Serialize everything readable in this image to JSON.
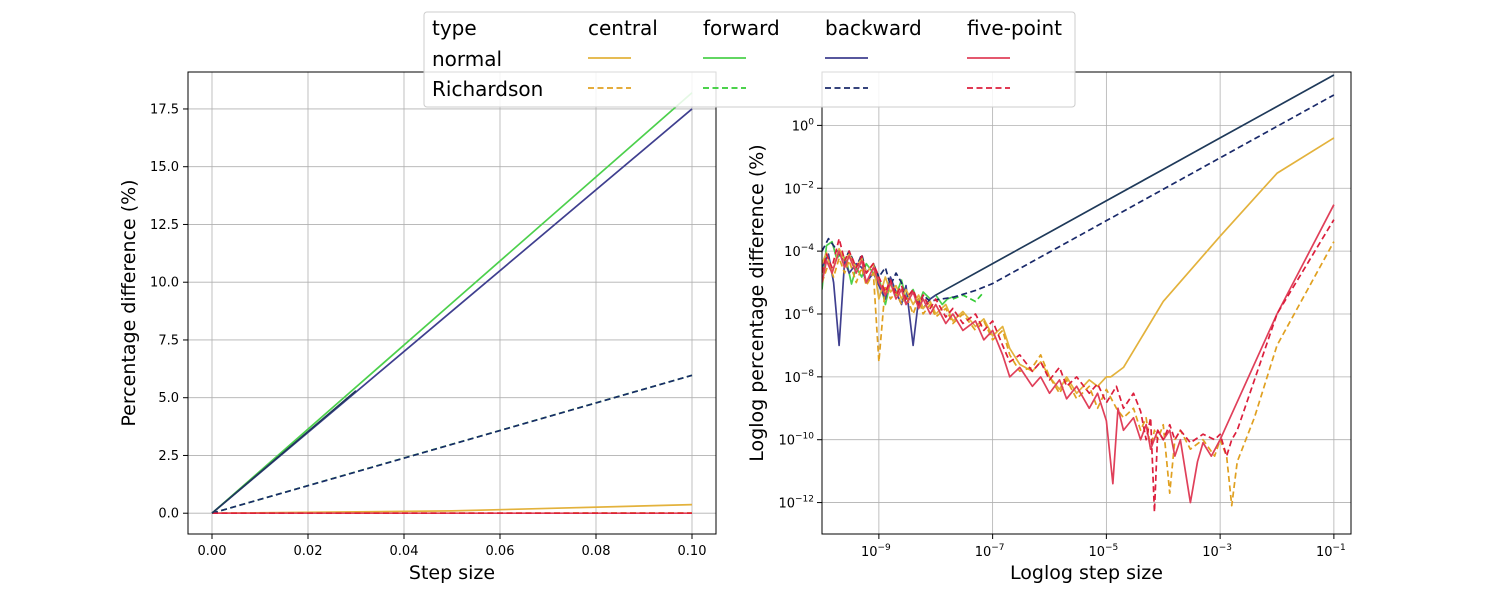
{
  "chart_data": [
    {
      "type": "line",
      "xlabel": "Step size",
      "ylabel": "Percentage difference (%)",
      "xlim": [
        -0.005,
        0.105
      ],
      "ylim": [
        -0.9,
        19.1
      ],
      "xticks": [
        0.0,
        0.02,
        0.04,
        0.06,
        0.08,
        0.1
      ],
      "xtick_labels": [
        "0.00",
        "0.02",
        "0.04",
        "0.06",
        "0.08",
        "0.10"
      ],
      "yticks": [
        0.0,
        2.5,
        5.0,
        7.5,
        10.0,
        12.5,
        15.0,
        17.5
      ],
      "ytick_labels": [
        "0.0",
        "2.5",
        "5.0",
        "7.5",
        "10.0",
        "12.5",
        "15.0",
        "17.5"
      ],
      "grid": true,
      "series": [
        {
          "name": "central normal",
          "style": "solid",
          "color": "#E3B23C",
          "x": [
            0.0,
            0.05,
            0.1
          ],
          "y": [
            0.0,
            0.1,
            0.37
          ]
        },
        {
          "name": "forward normal",
          "style": "solid",
          "color": "#4CD04C",
          "x": [
            0.0,
            0.05,
            0.1
          ],
          "y": [
            0.0,
            9.1,
            18.2
          ]
        },
        {
          "name": "backward normal",
          "style": "solid",
          "color": "#3F3F8F",
          "x": [
            0.0,
            0.05,
            0.1
          ],
          "y": [
            0.0,
            8.75,
            17.5
          ]
        },
        {
          "name": "five-point normal",
          "style": "solid",
          "color": "#E0405A",
          "x": [
            0.0,
            0.1
          ],
          "y": [
            0.0,
            0.0
          ]
        },
        {
          "name": "central Richardson",
          "style": "dashed",
          "color": "#E0A020",
          "x": [
            0.0,
            0.1
          ],
          "y": [
            0.0,
            0.01
          ]
        },
        {
          "name": "forward Richardson",
          "style": "dashed",
          "color": "#33CC33",
          "x": [
            0.0,
            0.1
          ],
          "y": [
            0.0,
            5.97
          ]
        },
        {
          "name": "backward Richardson",
          "style": "dashed",
          "color": "#1A2A6A",
          "x": [
            0.0,
            0.05,
            0.1
          ],
          "y": [
            0.0,
            2.98,
            5.97
          ]
        },
        {
          "name": "five-point Richardson",
          "style": "dashed",
          "color": "#DC1E3C",
          "x": [
            0.0,
            0.1
          ],
          "y": [
            0.0,
            0.0
          ]
        },
        {
          "name": "overlap",
          "style": "solid",
          "color": "#1F3A5A",
          "x": [
            0.0,
            0.03
          ],
          "y": [
            0.0,
            5.3
          ]
        }
      ]
    },
    {
      "type": "line",
      "xscale": "log",
      "yscale": "log",
      "xlabel": "Loglog step size",
      "ylabel": "Loglog percentage difference (%)",
      "xlim": [
        1e-10,
        0.2
      ],
      "ylim": [
        1e-13,
        50
      ],
      "xticks": [
        1e-09,
        1e-07,
        1e-05,
        0.001,
        0.1
      ],
      "xtick_exponents": [
        "−9",
        "−7",
        "−5",
        "−3",
        "−1"
      ],
      "yticks": [
        1e-12,
        1e-10,
        1e-08,
        1e-06,
        0.0001,
        0.01,
        1
      ],
      "ytick_exponents": [
        "−12",
        "−10",
        "−8",
        "−6",
        "−4",
        "−2",
        "0"
      ],
      "tick_base": "10",
      "grid": true,
      "series": [
        {
          "name": "forward normal",
          "style": "solid",
          "color": "#4CD04C",
          "x": [
            1e-10,
            1.2e-10,
            1.5e-10,
            1.8e-10,
            2.2e-10,
            2.7e-10,
            3.3e-10,
            4e-10,
            5e-10,
            6e-10,
            8e-10,
            1e-09,
            1.3e-09,
            1.6e-09,
            2e-09,
            2.5e-09,
            3e-09,
            4e-09,
            5e-09,
            6e-09,
            8e-09,
            1e-08,
            1.3e-08,
            1.6e-08,
            2e-08
          ],
          "y": [
            6e-06,
            0.00015,
            0.0002,
            6e-05,
            8e-05,
            5e-05,
            9e-06,
            3e-05,
            1.5e-05,
            4e-05,
            2e-05,
            1.5e-05,
            2e-06,
            1e-05,
            4e-06,
            1.2e-05,
            3e-06,
            6e-06,
            2e-06,
            5e-06,
            3e-06,
            4e-06,
            2e-06,
            3e-06,
            3.5e-06
          ]
        },
        {
          "name": "forward Richardson",
          "style": "dashed",
          "color": "#33CC33",
          "x": [
            2e-08,
            3e-08,
            5e-08,
            7e-08
          ],
          "y": [
            3e-06,
            4e-06,
            2.5e-06,
            5e-06
          ]
        },
        {
          "name": "backward normal",
          "style": "solid",
          "color": "#3F3F8F",
          "x": [
            1e-10,
            1.3e-10,
            1.6e-10,
            2e-10,
            2.5e-10,
            3e-10,
            4e-10,
            5e-10,
            6e-10,
            8e-10,
            1e-09,
            1.3e-09,
            1.6e-09,
            2e-09,
            2.5e-09,
            3e-09,
            4e-09,
            5e-09,
            6e-09,
            8e-09,
            1e-08
          ],
          "y": [
            3e-05,
            8e-05,
            1e-05,
            1e-07,
            5e-05,
            2e-05,
            4e-05,
            3e-05,
            1e-05,
            2e-05,
            8e-06,
            3e-06,
            1.5e-05,
            5e-06,
            2e-06,
            8e-06,
            1e-07,
            3e-06,
            1.5e-06,
            3e-06,
            4e-06
          ]
        },
        {
          "name": "backward Richardson",
          "style": "dashed",
          "color": "#1A2A6A",
          "x": [
            1e-10,
            1.3e-10,
            1.6e-10,
            2e-10,
            2.5e-10,
            3e-10,
            4e-10,
            5e-10,
            6e-10,
            8e-10,
            1e-09,
            1.3e-09,
            1.6e-09,
            2e-09,
            2.5e-09,
            3e-09,
            4e-09,
            5e-09,
            6e-09,
            8e-09,
            1e-08,
            2e-08,
            5e-08,
            1e-07,
            1e-06,
            1e-05,
            0.0001,
            0.001,
            0.01,
            0.1
          ],
          "y": [
            0.0001,
            0.00025,
            0.00015,
            8e-05,
            5e-05,
            0.0001,
            3e-05,
            8e-05,
            2e-05,
            4e-05,
            1.5e-05,
            3e-05,
            8e-06,
            2e-05,
            1e-05,
            2e-06,
            5e-06,
            1.5e-06,
            4e-06,
            2.5e-06,
            2.8e-06,
            3.4e-06,
            5.6e-06,
            9.3e-06,
            9.3e-05,
            0.00093,
            0.0093,
            0.093,
            0.93,
            9.3
          ]
        },
        {
          "name": "backward normal asymptote",
          "style": "solid",
          "color": "#1F3A5A",
          "x": [
            1e-08,
            1e-07,
            1e-06,
            1e-05,
            0.0001,
            0.001,
            0.01,
            0.1
          ],
          "y": [
            4e-06,
            4e-05,
            0.0004,
            0.004,
            0.04,
            0.4,
            4,
            40
          ]
        },
        {
          "name": "central normal",
          "style": "solid",
          "color": "#E3B23C",
          "x": [
            1e-10,
            1.2e-10,
            1.5e-10,
            2e-10,
            2.5e-10,
            3e-10,
            4e-10,
            5e-10,
            6e-10,
            8e-10,
            1e-09,
            1.3e-09,
            1.6e-09,
            2e-09,
            2.5e-09,
            3e-09,
            4e-09,
            5e-09,
            6e-09,
            8e-09,
            1e-08,
            1.5e-08,
            2e-08,
            3e-08,
            5e-08,
            7e-08,
            1e-07,
            1.5e-07,
            2e-07,
            3e-07,
            5e-07,
            7e-07,
            1e-06,
            1.5e-06,
            2e-06,
            3e-06,
            5e-06,
            7e-06,
            1e-05,
            1.2e-05,
            2e-05,
            0.0001,
            0.001,
            0.01,
            0.1
          ],
          "y": [
            4e-05,
            9e-05,
            2e-05,
            0.00012,
            5e-05,
            8e-05,
            3e-05,
            6e-05,
            2e-05,
            4e-05,
            3e-06,
            1.5e-05,
            5e-06,
            8e-06,
            3e-06,
            6e-06,
            2e-06,
            4e-06,
            1.5e-06,
            2.5e-06,
            1e-06,
            2e-06,
            6e-07,
            1.2e-06,
            4e-07,
            7e-07,
            2e-07,
            4e-07,
            8e-08,
            2.5e-08,
            1.5e-08,
            3e-08,
            1e-08,
            4e-09,
            1e-08,
            3e-09,
            8e-09,
            5e-09,
            1e-08,
            1e-08,
            2e-08,
            2.5e-06,
            0.0003,
            0.03,
            0.4
          ]
        },
        {
          "name": "central Richardson",
          "style": "dashed",
          "color": "#E0A020",
          "x": [
            1e-10,
            1.3e-10,
            1.6e-10,
            2e-10,
            2.5e-10,
            3e-10,
            4e-10,
            5e-10,
            6e-10,
            8e-10,
            1e-09,
            1.3e-09,
            1.6e-09,
            2e-09,
            2.5e-09,
            3e-09,
            4e-09,
            5e-09,
            6e-09,
            8e-09,
            1e-08,
            1.5e-08,
            2e-08,
            3e-08,
            5e-08,
            7e-08,
            1e-07,
            1.5e-07,
            2e-07,
            3e-07,
            5e-07,
            7e-07,
            1e-06,
            1.5e-06,
            2e-06,
            3e-06,
            5e-06,
            7e-06,
            1e-05,
            1.5e-05,
            2e-05,
            3e-05,
            4e-05,
            5e-05,
            6e-05,
            7e-05,
            8e-05,
            0.0001,
            0.00013,
            0.00016,
            0.0002,
            0.0003,
            0.0005,
            0.0008,
            0.001,
            0.0013,
            0.0016,
            0.002,
            0.004,
            0.01,
            0.1
          ],
          "y": [
            1e-05,
            4e-05,
            1.5e-05,
            6e-05,
            2e-05,
            5e-05,
            1e-05,
            3e-05,
            8e-06,
            2e-05,
            3e-08,
            8e-06,
            3e-06,
            5e-06,
            2e-06,
            4e-06,
            1e-06,
            3e-06,
            1e-06,
            2e-06,
            8e-07,
            1.5e-06,
            5e-07,
            1e-06,
            3e-07,
            6e-07,
            1.5e-07,
            3e-07,
            5e-08,
            1.5e-08,
            2e-08,
            5e-08,
            1e-08,
            3e-09,
            8e-09,
            2e-09,
            5e-09,
            1e-09,
            4e-09,
            1e-09,
            5e-10,
            1e-09,
            2e-10,
            5e-10,
            5e-11,
            2e-10,
            1e-10,
            3e-10,
            2e-12,
            1e-10,
            2e-10,
            5e-11,
            1e-10,
            3e-11,
            1e-10,
            3e-11,
            8e-13,
            2e-11,
            5e-10,
            1e-07,
            0.0002
          ]
        },
        {
          "name": "five-point normal",
          "style": "solid",
          "color": "#E0405A",
          "x": [
            1e-10,
            1.2e-10,
            1.5e-10,
            2e-10,
            2.5e-10,
            3e-10,
            4e-10,
            5e-10,
            6e-10,
            8e-10,
            1e-09,
            1.3e-09,
            1.6e-09,
            2e-09,
            2.5e-09,
            3e-09,
            4e-09,
            5e-09,
            6e-09,
            8e-09,
            1e-08,
            1.5e-08,
            2e-08,
            3e-08,
            5e-08,
            7e-08,
            1e-07,
            1.5e-07,
            2e-07,
            3e-07,
            5e-07,
            7e-07,
            1e-06,
            1.5e-06,
            2e-06,
            3e-06,
            5e-06,
            7e-06,
            1e-05,
            1.3e-05,
            1.6e-05,
            2e-05,
            3e-05,
            4e-05,
            5e-05,
            6e-05,
            8e-05,
            0.0001,
            0.00013,
            0.00016,
            0.0002,
            0.0003,
            0.0004,
            0.0005,
            0.0007,
            0.001,
            0.01,
            0.1
          ],
          "y": [
            1e-05,
            5e-05,
            2e-05,
            0.0001,
            3e-05,
            7e-05,
            2e-05,
            5e-05,
            1e-05,
            3e-05,
            1e-05,
            4e-06,
            1e-05,
            3e-06,
            6e-06,
            2e-06,
            5e-06,
            1.5e-06,
            3e-06,
            1e-06,
            2e-06,
            5e-07,
            1e-06,
            3e-07,
            6e-07,
            1.5e-07,
            3e-07,
            5e-08,
            1e-08,
            2e-08,
            5e-09,
            1e-08,
            3e-09,
            8e-09,
            2e-09,
            5e-09,
            1e-09,
            3e-09,
            4e-10,
            4e-12,
            1e-09,
            2e-10,
            5e-10,
            1e-10,
            3e-10,
            5e-11,
            2e-10,
            1e-10,
            2e-10,
            3e-11,
            1e-10,
            1e-12,
            2e-11,
            8e-11,
            3e-11,
            1e-10,
            1e-06,
            0.003
          ]
        },
        {
          "name": "five-point Richardson",
          "style": "dashed",
          "color": "#DC1E3C",
          "x": [
            1e-10,
            1.2e-10,
            1.5e-10,
            2e-10,
            2.5e-10,
            3e-10,
            4e-10,
            5e-10,
            6e-10,
            8e-10,
            1e-09,
            1.3e-09,
            1.6e-09,
            2e-09,
            2.5e-09,
            3e-09,
            4e-09,
            5e-09,
            6e-09,
            8e-09,
            1e-08,
            1.5e-08,
            2e-08,
            3e-08,
            5e-08,
            7e-08,
            1e-07,
            1.5e-07,
            2e-07,
            3e-07,
            5e-07,
            7e-07,
            1e-06,
            1.5e-06,
            2e-06,
            3e-06,
            5e-06,
            7e-06,
            1e-05,
            1.5e-05,
            2e-05,
            3e-05,
            4e-05,
            5e-05,
            6e-05,
            7e-05,
            8e-05,
            0.0001,
            0.00013,
            0.00016,
            0.0002,
            0.0003,
            0.0005,
            0.0008,
            0.001,
            0.0013,
            0.0016,
            0.002,
            0.01,
            0.1
          ],
          "y": [
            2e-05,
            8e-05,
            3e-05,
            0.00025,
            5e-05,
            0.0001,
            3e-05,
            7e-05,
            2e-05,
            4e-05,
            1.5e-05,
            5e-06,
            1.2e-05,
            4e-06,
            8e-06,
            3e-06,
            6e-06,
            2e-06,
            4e-06,
            1.5e-06,
            3e-06,
            8e-07,
            1.5e-06,
            5e-07,
            1e-06,
            3e-07,
            6e-07,
            1e-07,
            3e-08,
            5e-08,
            1.5e-08,
            3e-08,
            8e-09,
            2e-08,
            5e-09,
            1e-08,
            3e-09,
            6e-09,
            1.5e-09,
            5e-09,
            1e-09,
            3e-09,
            8e-10,
            1e-10,
            5e-10,
            5e-13,
            2e-10,
            1e-10,
            3e-10,
            1e-10,
            2e-10,
            8e-11,
            1.5e-10,
            1e-10,
            1.5e-10,
            3e-11,
            1e-10,
            2e-10,
            1e-06,
            0.001
          ]
        }
      ]
    }
  ],
  "legend": {
    "placement": "top-center",
    "header": "type",
    "columns": [
      "central",
      "forward",
      "backward",
      "five-point"
    ],
    "rows": [
      {
        "label": "normal",
        "style": "solid",
        "colors": [
          "#E3B23C",
          "#4CD04C",
          "#3F3F8F",
          "#E0405A"
        ]
      },
      {
        "label": "Richardson",
        "style": "dashed",
        "colors": [
          "#E0A020",
          "#33CC33",
          "#1A2A6A",
          "#DC1E3C"
        ]
      }
    ],
    "background": "#ffffff",
    "border": "#cccccc"
  },
  "grid_color": "#b0b0b0"
}
